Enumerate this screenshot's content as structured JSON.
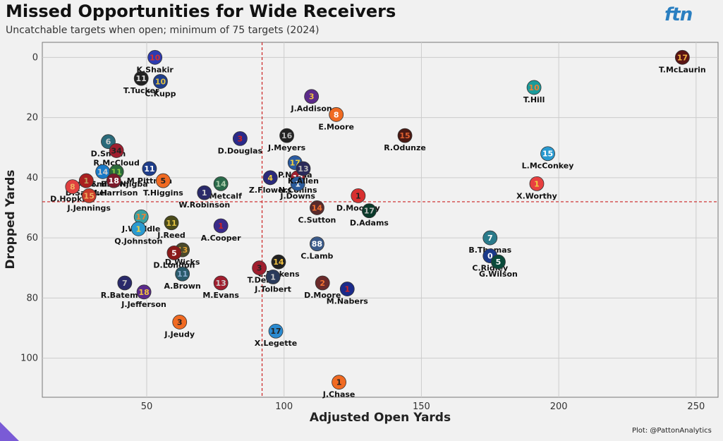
{
  "header": {
    "title": "Missed Opportunities for Wide Receivers",
    "subtitle": "Uncatchable targets when open; minimum of 75 targets (2024)",
    "logo_text": "ftn",
    "credit": "Plot: @PattonAnalytics"
  },
  "chart_data": {
    "type": "scatter",
    "title": "Missed Opportunities for Wide Receivers",
    "subtitle": "Uncatchable targets when open; minimum of 75 targets (2024)",
    "xlabel": "Adjusted Open Yards",
    "ylabel": "Dropped Yards",
    "xlim": [
      12,
      258
    ],
    "ylim": [
      113,
      -5
    ],
    "y_inverted": true,
    "xticks": [
      50,
      100,
      150,
      200,
      250
    ],
    "yticks": [
      0,
      20,
      40,
      60,
      80,
      100
    ],
    "grid": true,
    "reference_lines": {
      "x": 92,
      "y": 48,
      "style": "dashed",
      "color": "#cc2222"
    },
    "points": [
      {
        "name": "T.McLaurin",
        "x": 245,
        "y": 0,
        "num": "17",
        "color": "#5a1414",
        "text": "#f0b040"
      },
      {
        "name": "K.Shakir",
        "x": 53,
        "y": 0,
        "num": "10",
        "color": "#2d3bb0",
        "text": "#d03030"
      },
      {
        "name": "T.Tucker",
        "x": 48,
        "y": 7,
        "num": "11",
        "color": "#222222",
        "text": "#dddddd"
      },
      {
        "name": "C.Kupp",
        "x": 55,
        "y": 8,
        "num": "10",
        "color": "#1e3d8a",
        "text": "#e0c040"
      },
      {
        "name": "T.Hill",
        "x": 191,
        "y": 10,
        "num": "10",
        "color": "#1a9b9b",
        "text": "#f08030"
      },
      {
        "name": "J.Addison",
        "x": 110,
        "y": 13,
        "num": "3",
        "color": "#5c2a8a",
        "text": "#f0c040"
      },
      {
        "name": "E.Moore",
        "x": 119,
        "y": 19,
        "num": "8",
        "color": "#f06a22",
        "text": "#ffffff"
      },
      {
        "name": "J.Meyers",
        "x": 101,
        "y": 26,
        "num": "16",
        "color": "#222222",
        "text": "#bbbbbb"
      },
      {
        "name": "R.Odunze",
        "x": 144,
        "y": 26,
        "num": "15",
        "color": "#4a1a14",
        "text": "#e06030"
      },
      {
        "name": "D.Smith",
        "x": 36,
        "y": 28,
        "num": "6",
        "color": "#2a6a7a",
        "text": "#cccccc"
      },
      {
        "name": "D.Douglas",
        "x": 84,
        "y": 27,
        "num": "3",
        "color": "#2a2a8a",
        "text": "#cc2222"
      },
      {
        "name": "R.McCloud",
        "x": 39,
        "y": 31,
        "num": "34",
        "color": "#a01e2e",
        "text": "#222222"
      },
      {
        "name": "L.McConkey",
        "x": 196,
        "y": 32,
        "num": "15",
        "color": "#2a9ad0",
        "text": "#ffffff"
      },
      {
        "name": "P.Nacua",
        "x": 104,
        "y": 35,
        "num": "17",
        "color": "#2a5aa0",
        "text": "#f0d040"
      },
      {
        "name": "A.St. Brown",
        "x": 34,
        "y": 38,
        "num": "14",
        "color": "#1a7ac8",
        "text": "#cccccc"
      },
      {
        "name": "J.Smith-Njigba",
        "x": 39,
        "y": 38,
        "num": "11",
        "color": "#2a6a3a",
        "text": "#88cc44"
      },
      {
        "name": "M.Pittman",
        "x": 51,
        "y": 37,
        "num": "11",
        "color": "#1e3d8a",
        "text": "#ffffff"
      },
      {
        "name": "T.Higgins",
        "x": 56,
        "y": 41,
        "num": "5",
        "color": "#f06a22",
        "text": "#222222"
      },
      {
        "name": "D.Samuel",
        "x": 28,
        "y": 41,
        "num": "1",
        "color": "#aa2020",
        "text": "#c0a060"
      },
      {
        "name": "Z.Flowers",
        "x": 95,
        "y": 40,
        "num": "4",
        "color": "#2a2a7a",
        "text": "#f0d040"
      },
      {
        "name": "N.Collins",
        "x": 105,
        "y": 40,
        "num": "12",
        "color": "#a01e2e",
        "text": "#ffffff"
      },
      {
        "name": "J.Downs",
        "x": 105,
        "y": 42,
        "num": "1",
        "color": "#2a5a9a",
        "text": "#ffffff"
      },
      {
        "name": "D.Metcalf",
        "x": 77,
        "y": 42,
        "num": "14",
        "color": "#2a6a4a",
        "text": "#aaccaa"
      },
      {
        "name": "D.Hopkins",
        "x": 23,
        "y": 43,
        "num": "8",
        "color": "#e04040",
        "text": "#f0b060"
      },
      {
        "name": "M.Harrison",
        "x": 38,
        "y": 41,
        "num": "18",
        "color": "#7a1a2a",
        "text": "#ffffff"
      },
      {
        "name": "K.Allen",
        "x": 107,
        "y": 37,
        "num": "13",
        "color": "#2a2a5a",
        "text": "#bbbbbb"
      },
      {
        "name": "D.Mooney",
        "x": 127,
        "y": 46,
        "num": "1",
        "color": "#d83030",
        "text": "#222222"
      },
      {
        "name": "X.Worthy",
        "x": 192,
        "y": 42,
        "num": "1",
        "color": "#e84040",
        "text": "#f0d040"
      },
      {
        "name": "W.Robinson",
        "x": 71,
        "y": 45,
        "num": "1",
        "color": "#2a2a6a",
        "text": "#cccccc"
      },
      {
        "name": "J.Jennings",
        "x": 29,
        "y": 46,
        "num": "15",
        "color": "#c83a2a",
        "text": "#f0b060"
      },
      {
        "name": "C.Sutton",
        "x": 112,
        "y": 50,
        "num": "14",
        "color": "#5a2a2a",
        "text": "#f07030"
      },
      {
        "name": "D.Adams",
        "x": 131,
        "y": 51,
        "num": "17",
        "color": "#0a3a2a",
        "text": "#bbbbbb"
      },
      {
        "name": "J.Waddle",
        "x": 48,
        "y": 53,
        "num": "17",
        "color": "#3aa0a0",
        "text": "#f08030"
      },
      {
        "name": "J.Reed",
        "x": 59,
        "y": 55,
        "num": "11",
        "color": "#4a4a1a",
        "text": "#e0c040"
      },
      {
        "name": "A.Cooper",
        "x": 77,
        "y": 56,
        "num": "1",
        "color": "#3a2a8a",
        "text": "#cc2222"
      },
      {
        "name": "Q.Johnston",
        "x": 47,
        "y": 57,
        "num": "1",
        "color": "#2a9ad0",
        "text": "#f0d040"
      },
      {
        "name": "C.Lamb",
        "x": 112,
        "y": 62,
        "num": "88",
        "color": "#3a5a8a",
        "text": "#ffffff"
      },
      {
        "name": "B.Thomas",
        "x": 175,
        "y": 60,
        "num": "7",
        "color": "#2a7a8a",
        "text": "#ffffff"
      },
      {
        "name": "D.Wicks",
        "x": 63,
        "y": 64,
        "num": "13",
        "color": "#4a4a2a",
        "text": "#e0a030"
      },
      {
        "name": "D.London",
        "x": 60,
        "y": 65,
        "num": "5",
        "color": "#8a1a1a",
        "text": "#ffffff"
      },
      {
        "name": "C.Ridley",
        "x": 175,
        "y": 66,
        "num": "0",
        "color": "#1a3a8a",
        "text": "#ffffff"
      },
      {
        "name": "G.Wilson",
        "x": 178,
        "y": 68,
        "num": "5",
        "color": "#0a4a3a",
        "text": "#ffffff"
      },
      {
        "name": "C.Pickens",
        "x": 98,
        "y": 68,
        "num": "14",
        "color": "#222222",
        "text": "#f0c040"
      },
      {
        "name": "T.Dell",
        "x": 91,
        "y": 70,
        "num": "3",
        "color": "#a01e2e",
        "text": "#222222"
      },
      {
        "name": "A.Brown",
        "x": 63,
        "y": 72,
        "num": "11",
        "color": "#2a5a6a",
        "text": "#88aacc"
      },
      {
        "name": "J.Tolbert",
        "x": 96,
        "y": 73,
        "num": "1",
        "color": "#2a3a5a",
        "text": "#cccccc"
      },
      {
        "name": "D.Moore",
        "x": 114,
        "y": 75,
        "num": "2",
        "color": "#6a2a2a",
        "text": "#f07030"
      },
      {
        "name": "R.Bateman",
        "x": 42,
        "y": 75,
        "num": "7",
        "color": "#2a2a6a",
        "text": "#bbbbbb"
      },
      {
        "name": "M.Evans",
        "x": 77,
        "y": 75,
        "num": "13",
        "color": "#a01e2e",
        "text": "#cccccc"
      },
      {
        "name": "M.Nabers",
        "x": 123,
        "y": 77,
        "num": "1",
        "color": "#1a2a8a",
        "text": "#cc2222"
      },
      {
        "name": "J.Jefferson",
        "x": 49,
        "y": 78,
        "num": "18",
        "color": "#5a2a8a",
        "text": "#f0c040"
      },
      {
        "name": "J.Jeudy",
        "x": 62,
        "y": 88,
        "num": "3",
        "color": "#f06a22",
        "text": "#222222"
      },
      {
        "name": "X.Legette",
        "x": 97,
        "y": 91,
        "num": "17",
        "color": "#2a8ad0",
        "text": "#222222"
      },
      {
        "name": "J.Chase",
        "x": 120,
        "y": 108,
        "num": "1",
        "color": "#f06a22",
        "text": "#222222"
      }
    ]
  }
}
